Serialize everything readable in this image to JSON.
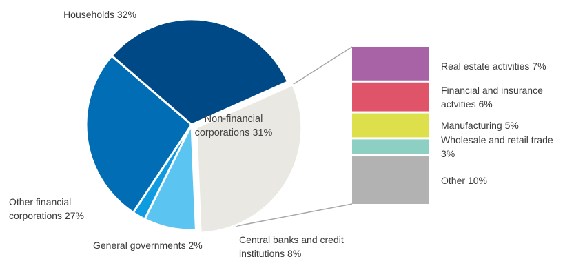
{
  "chart_data": {
    "type": "pie",
    "title": "",
    "slices": [
      {
        "name": "Households",
        "label_lines": [
          "Households 32%"
        ],
        "value": 32,
        "color": "#004987"
      },
      {
        "name": "Non-financial corporations",
        "label_lines": [
          "Non-financial",
          "corporations 31%"
        ],
        "value": 31,
        "color": "#e9e8e2"
      },
      {
        "name": "Central banks and credit institutions",
        "label_lines": [
          "Central banks and credit",
          "institutions 8%"
        ],
        "value": 8,
        "color": "#5bc4f1"
      },
      {
        "name": "General governments",
        "label_lines": [
          "General governments 2%"
        ],
        "value": 2,
        "color": "#0f9be0"
      },
      {
        "name": "Other financial corporations",
        "label_lines": [
          "Other financial",
          "corporations 27%"
        ],
        "value": 27,
        "color": "#016db5"
      }
    ],
    "breakdown": {
      "of": "Non-financial corporations",
      "segments": [
        {
          "name": "Real estate activities",
          "label_lines": [
            "Real estate activities 7%"
          ],
          "value": 7,
          "color": "#a763a5"
        },
        {
          "name": "Financial and insurance actvities",
          "label_lines": [
            "Financial and insurance",
            "actvities 6%"
          ],
          "value": 6,
          "color": "#e05469"
        },
        {
          "name": "Manufacturing",
          "label_lines": [
            "Manufacturing 5%"
          ],
          "value": 5,
          "color": "#dde04a"
        },
        {
          "name": "Wholesale and retail trade",
          "label_lines": [
            "Wholesale and retail trade",
            "3%"
          ],
          "value": 3,
          "color": "#8ecfc3"
        },
        {
          "name": "Other",
          "label_lines": [
            "Other 10%"
          ],
          "value": 10,
          "color": "#b2b2b2"
        }
      ]
    }
  }
}
